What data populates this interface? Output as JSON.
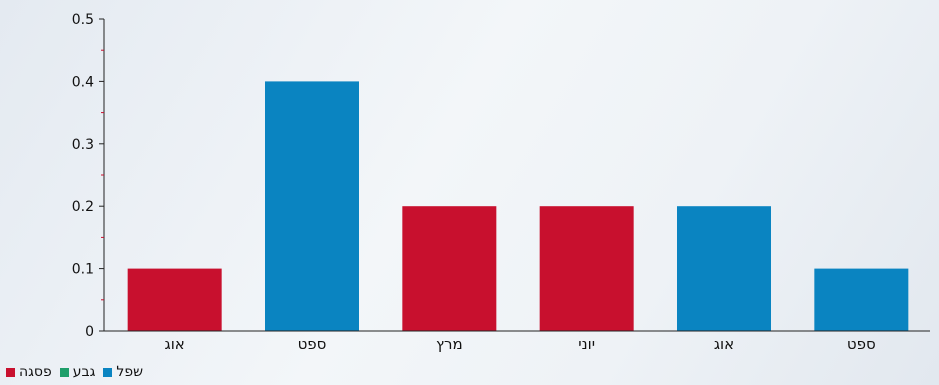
{
  "chart_data": {
    "type": "bar",
    "categories": [
      "אוג",
      "ספט",
      "מרץ",
      "יוני",
      "אוג",
      "ספט"
    ],
    "values": [
      0.1,
      0.4,
      0.2,
      0.2,
      0.2,
      0.1
    ],
    "bar_series": [
      "פסגה",
      "שפל",
      "פסגה",
      "פסגה",
      "שפל",
      "שפל"
    ],
    "series": [
      {
        "name": "פסגה",
        "color": "#c8102e"
      },
      {
        "name": "גבע",
        "color": "#1e9e6a"
      },
      {
        "name": "שפל",
        "color": "#0a84c1"
      }
    ],
    "yticks": [
      "0",
      "0.1",
      "0.2",
      "0.3",
      "0.4",
      "0.5"
    ],
    "ylim": [
      0,
      0.5
    ],
    "title": "",
    "xlabel": "",
    "ylabel": "",
    "grid": false,
    "legend_position": "bottom-left"
  }
}
